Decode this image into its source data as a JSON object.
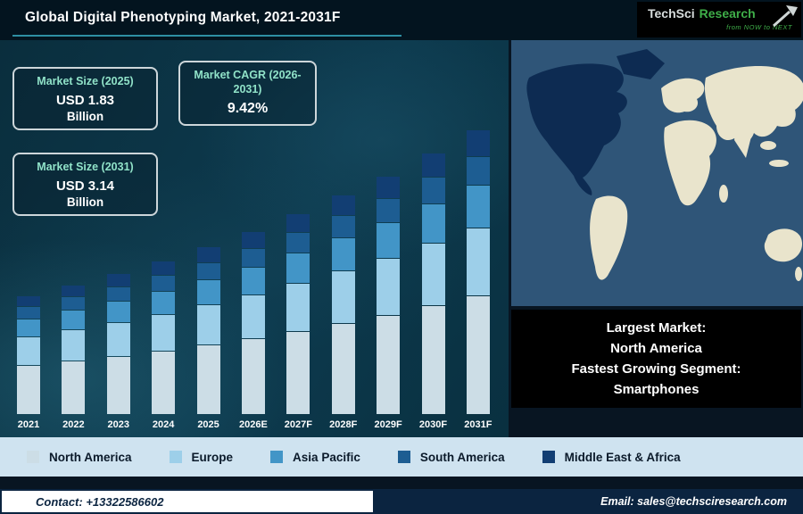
{
  "header": {
    "title": "Global Digital Phenotyping Market, 2021-2031F"
  },
  "logo": {
    "brand_primary": "TechSci",
    "brand_secondary": "Research",
    "tagline": "from NOW to NEXT"
  },
  "info_boxes": [
    {
      "title": "Market Size (2025)",
      "value": "USD 1.83",
      "unit": "Billion"
    },
    {
      "title": "Market CAGR (2026-2031)",
      "value": "9.42%",
      "unit": ""
    },
    {
      "title": "Market Size (2031)",
      "value": "USD 3.14",
      "unit": "Billion"
    }
  ],
  "chart_data": {
    "type": "bar",
    "stacked": true,
    "title": "Global Digital Phenotyping Market, 2021-2031F",
    "categories": [
      "2021",
      "2022",
      "2023",
      "2024",
      "2025",
      "2026E",
      "2027F",
      "2028F",
      "2029F",
      "2030F",
      "2031F"
    ],
    "series": [
      {
        "name": "North America",
        "color": "#ccdde6",
        "values": [
          0.54,
          0.59,
          0.64,
          0.7,
          0.77,
          0.84,
          0.92,
          1.01,
          1.1,
          1.21,
          1.32
        ]
      },
      {
        "name": "Europe",
        "color": "#9dcfe9",
        "values": [
          0.31,
          0.34,
          0.37,
          0.4,
          0.44,
          0.48,
          0.53,
          0.58,
          0.63,
          0.69,
          0.75
        ]
      },
      {
        "name": "Asia Pacific",
        "color": "#4295c7",
        "values": [
          0.19,
          0.21,
          0.23,
          0.25,
          0.27,
          0.3,
          0.33,
          0.36,
          0.39,
          0.43,
          0.47
        ]
      },
      {
        "name": "South America",
        "color": "#1d5d92",
        "values": [
          0.13,
          0.14,
          0.15,
          0.17,
          0.18,
          0.2,
          0.22,
          0.24,
          0.26,
          0.29,
          0.31
        ]
      },
      {
        "name": "Middle East & Africa",
        "color": "#123e73",
        "values": [
          0.11,
          0.12,
          0.14,
          0.15,
          0.17,
          0.18,
          0.2,
          0.22,
          0.24,
          0.26,
          0.29
        ]
      }
    ],
    "totals_estimated_usd_billion": [
      1.28,
      1.4,
      1.53,
      1.67,
      1.83,
      2.0,
      2.19,
      2.4,
      2.62,
      2.87,
      3.14
    ],
    "ylim": [
      0,
      3.5
    ],
    "legend_position": "bottom"
  },
  "map": {
    "highlighted_region": "North America",
    "highlight_color": "#0d2b52",
    "land_color": "#e9e4cc",
    "ocean_color": "#2f5578"
  },
  "map_caption": {
    "line1": "Largest Market:",
    "line2": "North America",
    "line3": "Fastest Growing Segment:",
    "line4": "Smartphones"
  },
  "footer": {
    "contact": "Contact: +13322586602",
    "email": "Email: sales@techsciresearch.com"
  }
}
